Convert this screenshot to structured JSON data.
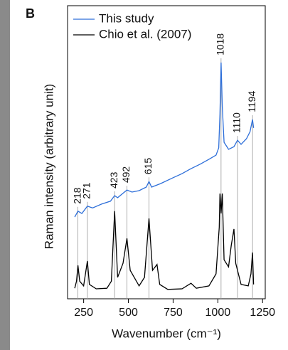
{
  "chart_data": {
    "type": "line",
    "panel_label": "B",
    "xlabel": "Wavenumber (cm⁻¹)",
    "ylabel": "Raman intensity (arbitrary unit)",
    "xlim": [
      160,
      1265
    ],
    "xticks": [
      250,
      500,
      750,
      1000,
      1250
    ],
    "ylim": [
      0,
      100
    ],
    "legend": "upper left",
    "peaks": [
      218,
      271,
      423,
      492,
      615,
      1018,
      1110,
      1194
    ],
    "series": [
      {
        "name": "This study",
        "color": "#2e6fd9",
        "x": [
          200,
          218,
          240,
          271,
          300,
          350,
          400,
          423,
          440,
          492,
          520,
          560,
          600,
          615,
          630,
          680,
          750,
          800,
          850,
          900,
          950,
          990,
          1005,
          1012,
          1018,
          1025,
          1035,
          1060,
          1090,
          1110,
          1130,
          1160,
          1180,
          1194,
          1200
        ],
        "values": [
          27.9,
          29.9,
          29.1,
          31.6,
          31,
          32.3,
          33.3,
          35.2,
          34.5,
          37.1,
          36.4,
          36.9,
          38.1,
          40,
          38.1,
          39.3,
          41.3,
          42.7,
          44.4,
          45.9,
          47.6,
          49,
          51.5,
          63.1,
          80.6,
          65.5,
          53.4,
          51,
          51.9,
          54.1,
          52.7,
          54.6,
          57,
          61.2,
          58.3
        ]
      },
      {
        "name": "Chio et al. (2007)",
        "color": "#000000",
        "x": [
          200,
          210,
          218,
          228,
          250,
          271,
          282,
          320,
          380,
          405,
          423,
          440,
          470,
          492,
          510,
          560,
          590,
          615,
          635,
          660,
          675,
          720,
          800,
          850,
          880,
          950,
          990,
          1008,
          1012,
          1018,
          1025,
          1035,
          1060,
          1075,
          1090,
          1100,
          1130,
          1170,
          1185,
          1194,
          1200
        ],
        "values": [
          3.6,
          6,
          11.4,
          6,
          4.4,
          12.9,
          4.9,
          3.4,
          3.6,
          6,
          29.9,
          7.3,
          12.1,
          20.6,
          9.7,
          4.4,
          7.3,
          27.4,
          9.7,
          11.7,
          4.9,
          3.2,
          3.4,
          5.3,
          3.6,
          4.4,
          8.5,
          24.3,
          35.9,
          29.1,
          35.9,
          13.3,
          10.9,
          18.2,
          23.8,
          12.1,
          4.9,
          4.4,
          8.5,
          15.8,
          4.9
        ]
      }
    ]
  }
}
